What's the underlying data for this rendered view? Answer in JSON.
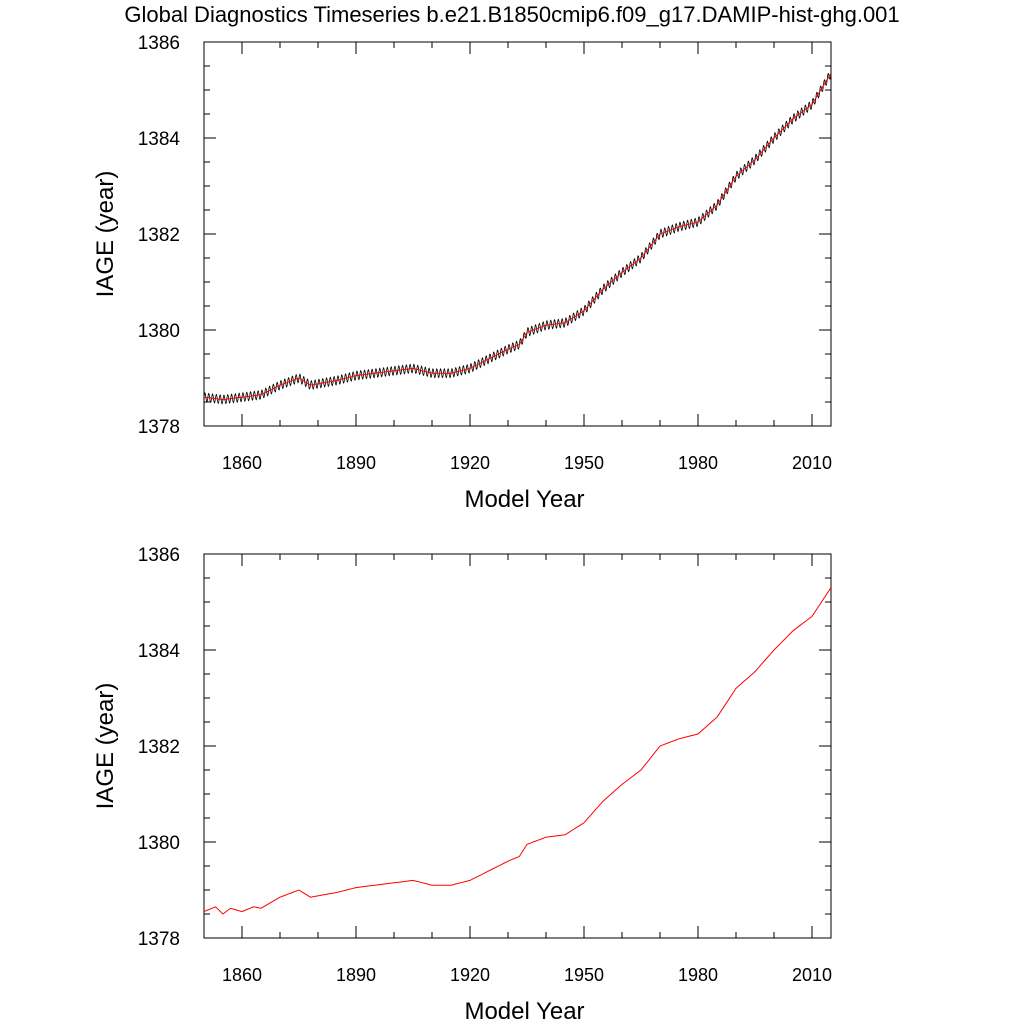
{
  "title": "Global Diagnostics Timeseries b.e21.B1850cmip6.f09_g17.DAMIP-hist-ghg.001",
  "chart_data": [
    {
      "type": "line",
      "xlabel": "Model Year",
      "ylabel": "IAGE (year)",
      "xlim": [
        1850,
        2015
      ],
      "ylim": [
        1378,
        1386
      ],
      "xticks": [
        1860,
        1890,
        1920,
        1950,
        1980,
        2010
      ],
      "yticks": [
        1378,
        1380,
        1382,
        1384,
        1386
      ],
      "series": [
        {
          "color": "#000000",
          "style": "monthly-seasonal",
          "x": [
            1850,
            1855,
            1860,
            1865,
            1870,
            1875,
            1878,
            1885,
            1890,
            1895,
            1900,
            1905,
            1910,
            1915,
            1920,
            1925,
            1930,
            1933,
            1935,
            1940,
            1945,
            1950,
            1955,
            1960,
            1965,
            1970,
            1975,
            1980,
            1985,
            1990,
            1995,
            2000,
            2005,
            2010,
            2015
          ],
          "y": [
            1378.6,
            1378.55,
            1378.6,
            1378.65,
            1378.85,
            1379.0,
            1378.85,
            1378.95,
            1379.05,
            1379.1,
            1379.15,
            1379.2,
            1379.1,
            1379.1,
            1379.2,
            1379.4,
            1379.6,
            1379.7,
            1379.95,
            1380.1,
            1380.15,
            1380.4,
            1380.85,
            1381.2,
            1381.5,
            1382.0,
            1382.15,
            1382.25,
            1382.6,
            1383.2,
            1383.55,
            1384.0,
            1384.4,
            1384.7,
            1385.35
          ]
        },
        {
          "color": "#ff0000",
          "style": "annual-mean",
          "x": [
            1850,
            1855,
            1860,
            1865,
            1870,
            1875,
            1878,
            1885,
            1890,
            1895,
            1900,
            1905,
            1910,
            1915,
            1920,
            1925,
            1930,
            1933,
            1935,
            1940,
            1945,
            1950,
            1955,
            1960,
            1965,
            1970,
            1975,
            1980,
            1985,
            1990,
            1995,
            2000,
            2005,
            2010,
            2015
          ],
          "y": [
            1378.6,
            1378.55,
            1378.6,
            1378.65,
            1378.85,
            1379.0,
            1378.85,
            1378.95,
            1379.05,
            1379.1,
            1379.15,
            1379.2,
            1379.1,
            1379.1,
            1379.2,
            1379.4,
            1379.6,
            1379.7,
            1379.95,
            1380.1,
            1380.15,
            1380.4,
            1380.85,
            1381.2,
            1381.5,
            1382.0,
            1382.15,
            1382.25,
            1382.6,
            1383.2,
            1383.55,
            1384.0,
            1384.4,
            1384.7,
            1385.35
          ]
        }
      ]
    },
    {
      "type": "line",
      "xlabel": "Model Year",
      "ylabel": "IAGE (year)",
      "xlim": [
        1850,
        2015
      ],
      "ylim": [
        1378,
        1386
      ],
      "xticks": [
        1860,
        1890,
        1920,
        1950,
        1980,
        2010
      ],
      "yticks": [
        1378,
        1380,
        1382,
        1384,
        1386
      ],
      "series": [
        {
          "color": "#ff0000",
          "style": "annual-mean",
          "x": [
            1850,
            1853,
            1855,
            1857,
            1860,
            1863,
            1865,
            1870,
            1875,
            1878,
            1885,
            1890,
            1895,
            1900,
            1905,
            1910,
            1915,
            1920,
            1925,
            1930,
            1933,
            1935,
            1940,
            1945,
            1950,
            1955,
            1960,
            1965,
            1970,
            1975,
            1980,
            1985,
            1990,
            1995,
            2000,
            2005,
            2010,
            2015
          ],
          "y": [
            1378.55,
            1378.65,
            1378.5,
            1378.62,
            1378.55,
            1378.65,
            1378.62,
            1378.85,
            1379.0,
            1378.85,
            1378.95,
            1379.05,
            1379.1,
            1379.15,
            1379.2,
            1379.1,
            1379.1,
            1379.2,
            1379.4,
            1379.6,
            1379.7,
            1379.95,
            1380.1,
            1380.15,
            1380.4,
            1380.85,
            1381.2,
            1381.5,
            1382.0,
            1382.15,
            1382.25,
            1382.6,
            1383.2,
            1383.55,
            1384.0,
            1384.4,
            1384.7,
            1385.3
          ]
        }
      ]
    }
  ]
}
